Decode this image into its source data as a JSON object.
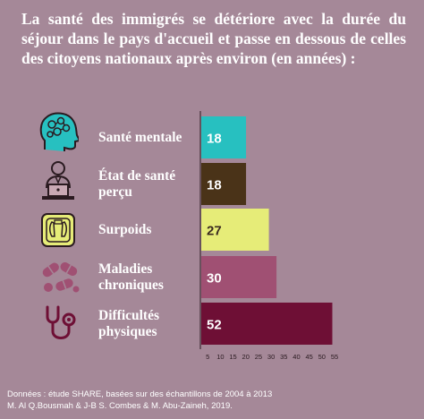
{
  "title": "La santé des immigrés se détériore avec la durée du séjour dans le pays d'accueil et passe en dessous de celles des citoyens nationaux après environ (en années) :",
  "chart_data": {
    "type": "bar",
    "orientation": "horizontal",
    "categories": [
      "Santé mentale",
      "État de santé perçu",
      "Surpoids",
      "Maladies chroniques",
      "Difficultés physiques"
    ],
    "label_lines": [
      [
        "Santé mentale"
      ],
      [
        "État de santé",
        "perçu"
      ],
      [
        "Surpoids"
      ],
      [
        "Maladies",
        "chroniques"
      ],
      [
        "Difficultés",
        "physiques"
      ]
    ],
    "values": [
      18,
      18,
      27,
      30,
      52
    ],
    "bar_colors": [
      "#27c0c0",
      "#4a3318",
      "#e6ec78",
      "#a05073",
      "#6e0f35"
    ],
    "value_label_colors": [
      "#ffffff",
      "#ffffff",
      "#3a2a20",
      "#ffffff",
      "#ffffff"
    ],
    "x_ticks": [
      "5",
      "10",
      "15",
      "20",
      "25",
      "30",
      "35",
      "40",
      "45",
      "50",
      "55"
    ],
    "xlim": [
      0,
      55
    ],
    "icons": [
      "brain-head-icon",
      "doctor-laptop-icon",
      "scale-icon",
      "pills-icon",
      "stethoscope-icon"
    ]
  },
  "footer": {
    "line1": "Données : étude SHARE, basées sur des échantillons de 2004 à 2013",
    "line2": "M. Al Q.Bousmah & J-B S. Combes & M. Abu-Zaineh, 2019."
  }
}
